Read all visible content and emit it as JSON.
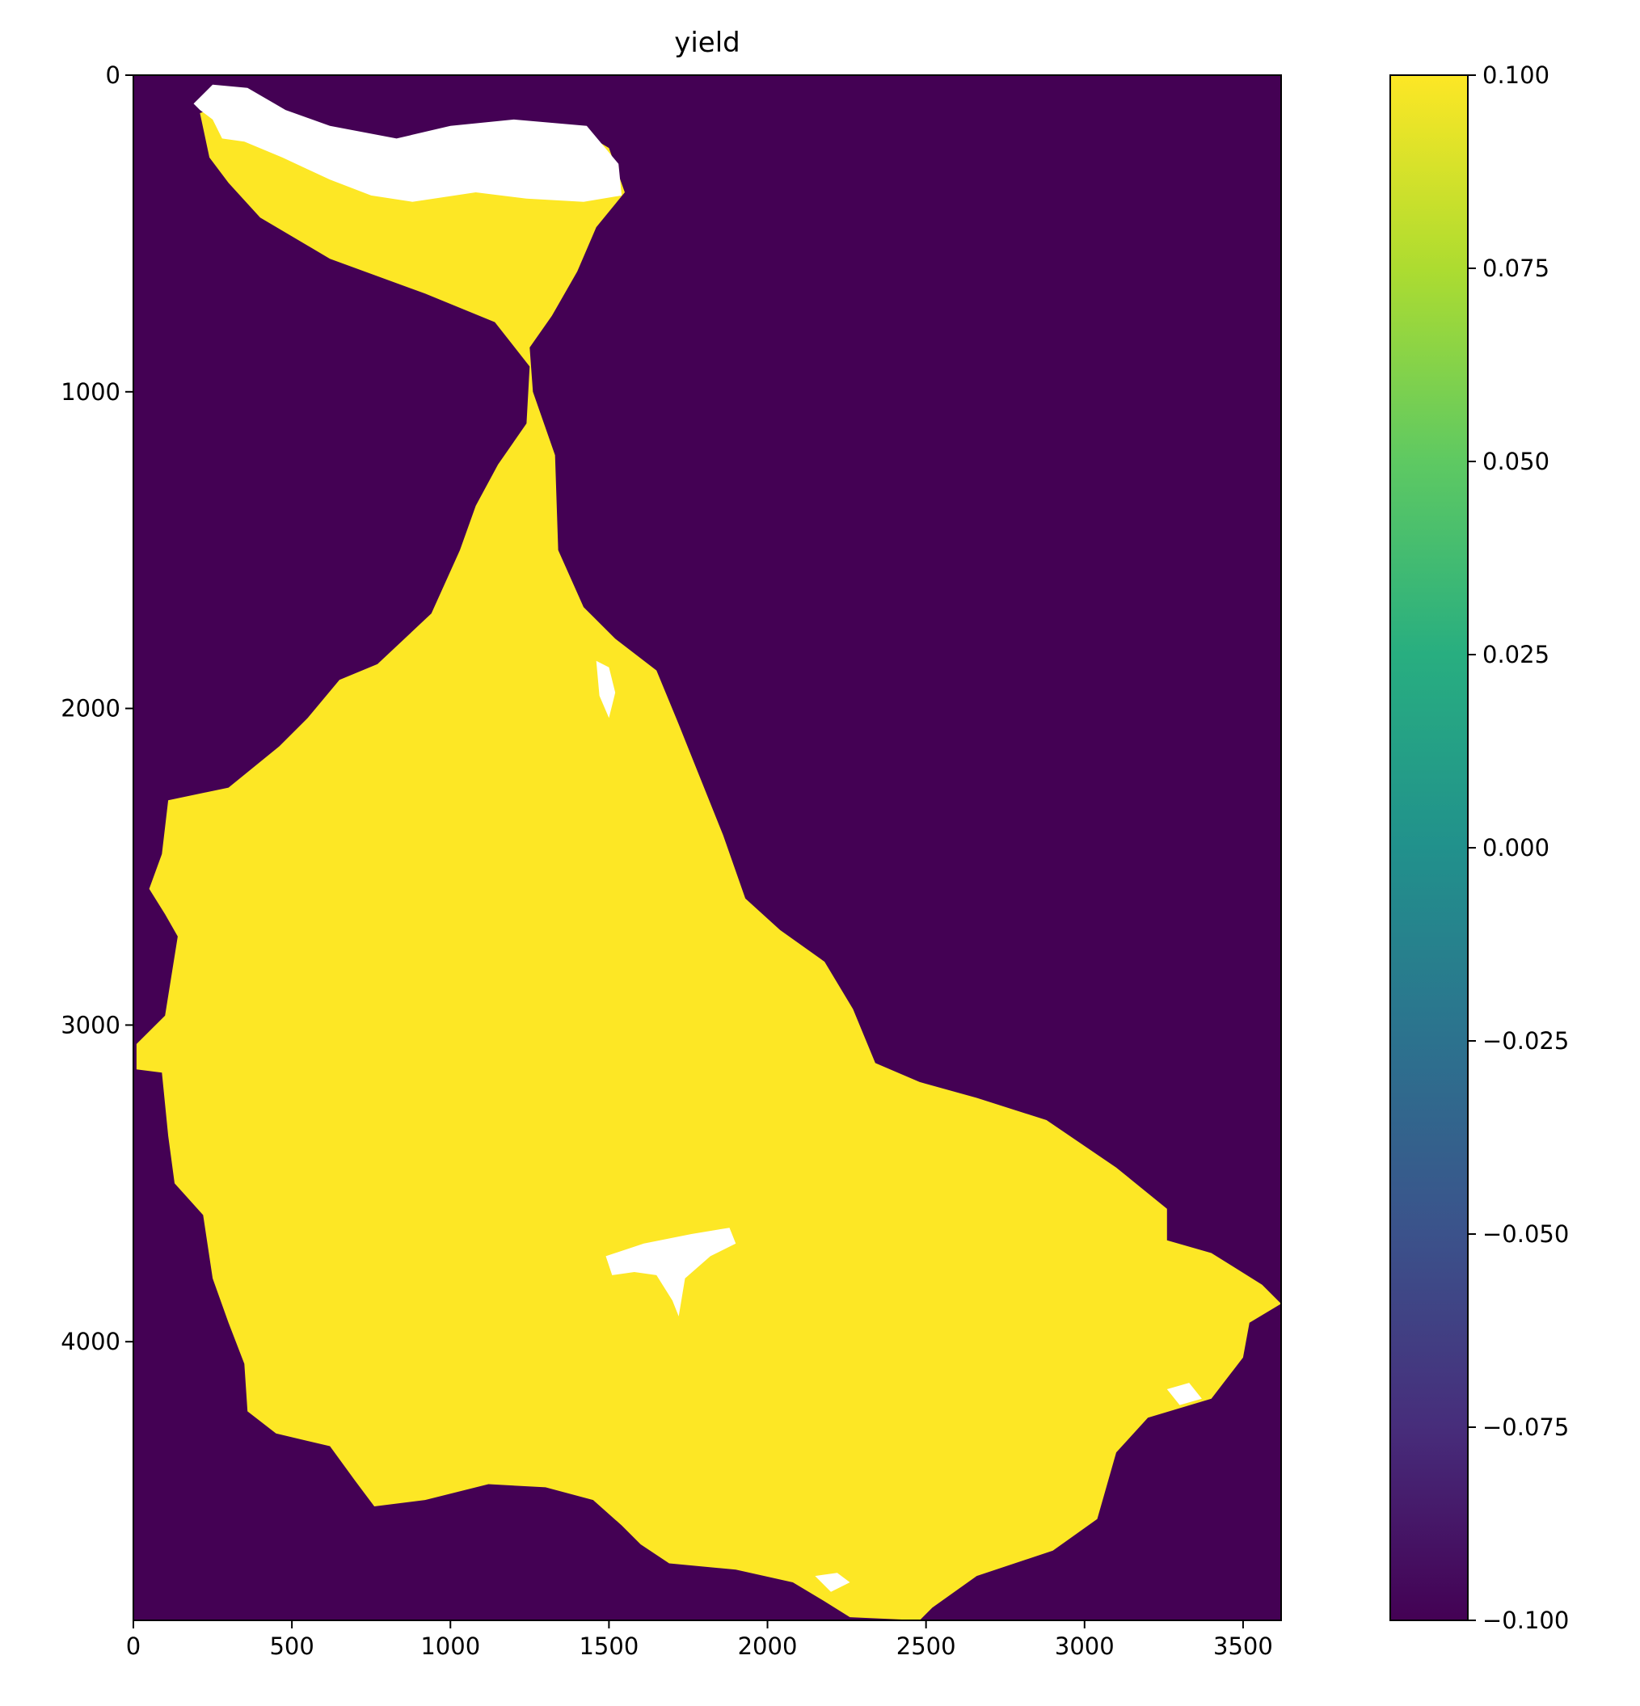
{
  "chart_data": {
    "type": "heatmap",
    "title": "yield",
    "xlabel": "",
    "ylabel": "",
    "xlim": [
      0,
      3620
    ],
    "ylim": [
      4880,
      0
    ],
    "x_ticks": [
      {
        "value": 0,
        "label": "0"
      },
      {
        "value": 500,
        "label": "500"
      },
      {
        "value": 1000,
        "label": "1000"
      },
      {
        "value": 1500,
        "label": "1500"
      },
      {
        "value": 2000,
        "label": "2000"
      },
      {
        "value": 2500,
        "label": "2500"
      },
      {
        "value": 3000,
        "label": "3000"
      },
      {
        "value": 3500,
        "label": "3500"
      }
    ],
    "y_ticks": [
      {
        "value": 0,
        "label": "0"
      },
      {
        "value": 1000,
        "label": "1000"
      },
      {
        "value": 2000,
        "label": "2000"
      },
      {
        "value": 3000,
        "label": "3000"
      },
      {
        "value": 4000,
        "label": "4000"
      }
    ],
    "colormap": "viridis",
    "colorbar": {
      "vmin": -0.1,
      "vmax": 0.1,
      "ticks": [
        {
          "value": 0.1,
          "label": "0.100"
        },
        {
          "value": 0.075,
          "label": "0.075"
        },
        {
          "value": 0.05,
          "label": "0.050"
        },
        {
          "value": 0.025,
          "label": "0.025"
        },
        {
          "value": 0.0,
          "label": "0.000"
        },
        {
          "value": -0.025,
          "label": "−0.025"
        },
        {
          "value": -0.05,
          "label": "−0.050"
        },
        {
          "value": -0.075,
          "label": "−0.075"
        },
        {
          "value": -0.1,
          "label": "−0.100"
        }
      ]
    },
    "background_value": -0.1,
    "region_value": 0.1,
    "region_outline": [
      [
        240,
        260
      ],
      [
        210,
        120
      ],
      [
        290,
        90
      ],
      [
        420,
        130
      ],
      [
        580,
        210
      ],
      [
        800,
        240
      ],
      [
        1000,
        190
      ],
      [
        1250,
        160
      ],
      [
        1400,
        170
      ],
      [
        1500,
        230
      ],
      [
        1550,
        370
      ],
      [
        1460,
        480
      ],
      [
        1400,
        620
      ],
      [
        1320,
        760
      ],
      [
        1250,
        860
      ],
      [
        1260,
        1000
      ],
      [
        1330,
        1200
      ],
      [
        1340,
        1500
      ],
      [
        1420,
        1680
      ],
      [
        1520,
        1780
      ],
      [
        1650,
        1880
      ],
      [
        1720,
        2050
      ],
      [
        1780,
        2200
      ],
      [
        1860,
        2400
      ],
      [
        1930,
        2600
      ],
      [
        2040,
        2700
      ],
      [
        2180,
        2800
      ],
      [
        2270,
        2950
      ],
      [
        2340,
        3120
      ],
      [
        2480,
        3180
      ],
      [
        2660,
        3230
      ],
      [
        2880,
        3300
      ],
      [
        3100,
        3450
      ],
      [
        3260,
        3580
      ],
      [
        3260,
        3680
      ],
      [
        3400,
        3720
      ],
      [
        3560,
        3820
      ],
      [
        3620,
        3880
      ],
      [
        3520,
        3940
      ],
      [
        3500,
        4050
      ],
      [
        3400,
        4180
      ],
      [
        3200,
        4240
      ],
      [
        3100,
        4350
      ],
      [
        3040,
        4560
      ],
      [
        2900,
        4660
      ],
      [
        2660,
        4740
      ],
      [
        2520,
        4840
      ],
      [
        2480,
        4880
      ],
      [
        2260,
        4870
      ],
      [
        2180,
        4820
      ],
      [
        2080,
        4760
      ],
      [
        1900,
        4720
      ],
      [
        1690,
        4700
      ],
      [
        1600,
        4640
      ],
      [
        1540,
        4580
      ],
      [
        1450,
        4500
      ],
      [
        1300,
        4460
      ],
      [
        1120,
        4450
      ],
      [
        920,
        4500
      ],
      [
        760,
        4520
      ],
      [
        700,
        4440
      ],
      [
        620,
        4330
      ],
      [
        450,
        4290
      ],
      [
        360,
        4220
      ],
      [
        350,
        4070
      ],
      [
        300,
        3940
      ],
      [
        250,
        3800
      ],
      [
        220,
        3600
      ],
      [
        130,
        3500
      ],
      [
        110,
        3350
      ],
      [
        90,
        3150
      ],
      [
        10,
        3140
      ],
      [
        10,
        3060
      ],
      [
        100,
        2970
      ],
      [
        140,
        2720
      ],
      [
        100,
        2650
      ],
      [
        50,
        2570
      ],
      [
        90,
        2460
      ],
      [
        110,
        2290
      ],
      [
        300,
        2250
      ],
      [
        460,
        2120
      ],
      [
        550,
        2030
      ],
      [
        650,
        1910
      ],
      [
        770,
        1860
      ],
      [
        940,
        1700
      ],
      [
        1030,
        1500
      ],
      [
        1080,
        1360
      ],
      [
        1150,
        1230
      ],
      [
        1240,
        1100
      ],
      [
        1250,
        920
      ],
      [
        1140,
        780
      ],
      [
        920,
        690
      ],
      [
        620,
        580
      ],
      [
        400,
        450
      ],
      [
        300,
        340
      ]
    ],
    "white_regions": [
      {
        "name": "north-coast-white",
        "outline": [
          [
            190,
            90
          ],
          [
            250,
            30
          ],
          [
            360,
            40
          ],
          [
            480,
            110
          ],
          [
            620,
            160
          ],
          [
            830,
            200
          ],
          [
            1000,
            160
          ],
          [
            1200,
            140
          ],
          [
            1430,
            160
          ],
          [
            1530,
            280
          ],
          [
            1540,
            380
          ],
          [
            1420,
            400
          ],
          [
            1240,
            390
          ],
          [
            1080,
            370
          ],
          [
            880,
            400
          ],
          [
            750,
            380
          ],
          [
            620,
            330
          ],
          [
            470,
            260
          ],
          [
            350,
            210
          ],
          [
            280,
            200
          ],
          [
            250,
            140
          ],
          [
            210,
            110
          ]
        ]
      },
      {
        "name": "reservoir-white",
        "outline": [
          [
            1490,
            3730
          ],
          [
            1610,
            3690
          ],
          [
            1760,
            3660
          ],
          [
            1880,
            3640
          ],
          [
            1900,
            3690
          ],
          [
            1820,
            3730
          ],
          [
            1740,
            3800
          ],
          [
            1730,
            3860
          ],
          [
            1720,
            3920
          ],
          [
            1700,
            3870
          ],
          [
            1650,
            3790
          ],
          [
            1580,
            3780
          ],
          [
            1510,
            3790
          ]
        ]
      },
      {
        "name": "river-white-1",
        "outline": [
          [
            1460,
            1850
          ],
          [
            1500,
            1870
          ],
          [
            1520,
            1950
          ],
          [
            1500,
            2030
          ],
          [
            1470,
            1960
          ]
        ]
      },
      {
        "name": "river-white-2",
        "outline": [
          [
            2150,
            4740
          ],
          [
            2220,
            4730
          ],
          [
            2260,
            4760
          ],
          [
            2200,
            4790
          ]
        ]
      },
      {
        "name": "river-white-3",
        "outline": [
          [
            3260,
            4150
          ],
          [
            3330,
            4130
          ],
          [
            3370,
            4180
          ],
          [
            3300,
            4200
          ]
        ]
      }
    ]
  }
}
